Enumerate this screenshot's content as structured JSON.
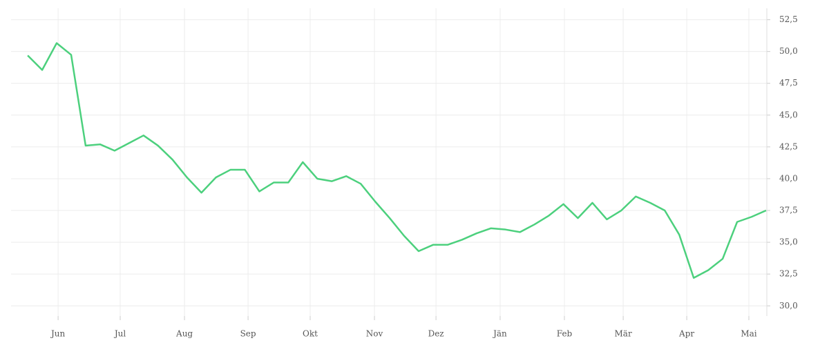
{
  "chart_data": {
    "type": "line",
    "x": [
      0,
      1,
      2,
      3,
      4,
      5,
      6,
      7,
      8,
      9,
      10,
      11,
      12,
      13,
      14,
      15,
      16,
      17,
      18,
      19,
      20,
      21,
      22,
      23,
      24,
      25,
      26,
      27,
      28,
      29,
      30,
      31,
      32,
      33,
      34,
      35,
      36,
      37,
      38,
      39,
      40,
      41,
      42,
      43,
      44,
      45,
      46,
      47,
      48,
      49,
      50,
      51
    ],
    "series": [
      {
        "color": "#4cd07d",
        "values": [
          49.69,
          48.55,
          50.66,
          49.74,
          42.6,
          42.7,
          42.2,
          42.8,
          43.4,
          42.6,
          41.5,
          40.1,
          38.9,
          40.1,
          40.7,
          40.7,
          39.0,
          39.7,
          39.7,
          41.3,
          40.0,
          39.8,
          40.2,
          39.6,
          38.2,
          36.9,
          35.5,
          34.3,
          34.8,
          34.8,
          35.2,
          35.7,
          36.1,
          36.0,
          35.8,
          36.4,
          37.1,
          38.0,
          36.9,
          38.1,
          36.8,
          37.5,
          38.6,
          38.1,
          37.5,
          35.6,
          32.2,
          32.8,
          33.7,
          36.6,
          37.0,
          37.5
        ]
      }
    ],
    "xlim": [
      -1.15,
      51.05
    ],
    "xticks": [
      {
        "value": 2.1,
        "label": "Jun"
      },
      {
        "value": 6.39,
        "label": "Jul"
      },
      {
        "value": 10.83,
        "label": "Aug"
      },
      {
        "value": 15.22,
        "label": "Sep"
      },
      {
        "value": 19.51,
        "label": "Okt"
      },
      {
        "value": 23.95,
        "label": "Nov"
      },
      {
        "value": 28.2,
        "label": "Dez"
      },
      {
        "value": 32.63,
        "label": "Jän"
      },
      {
        "value": 37.07,
        "label": "Feb"
      },
      {
        "value": 41.13,
        "label": "Mär"
      },
      {
        "value": 45.52,
        "label": "Apr"
      },
      {
        "value": 49.81,
        "label": "Mai"
      }
    ],
    "ylim": [
      29.2,
      53.4
    ],
    "yticks": [
      {
        "value": 30,
        "label": "30,0"
      },
      {
        "value": 32.5,
        "label": "32,5"
      },
      {
        "value": 35,
        "label": "35,0"
      },
      {
        "value": 37.5,
        "label": "37,5"
      },
      {
        "value": 40,
        "label": "40,0"
      },
      {
        "value": 42.5,
        "label": "42,5"
      },
      {
        "value": 45,
        "label": "45,0"
      },
      {
        "value": 47.5,
        "label": "47,5"
      },
      {
        "value": 50,
        "label": "50,0"
      },
      {
        "value": 52.5,
        "label": "52,5"
      }
    ],
    "grid": true
  }
}
